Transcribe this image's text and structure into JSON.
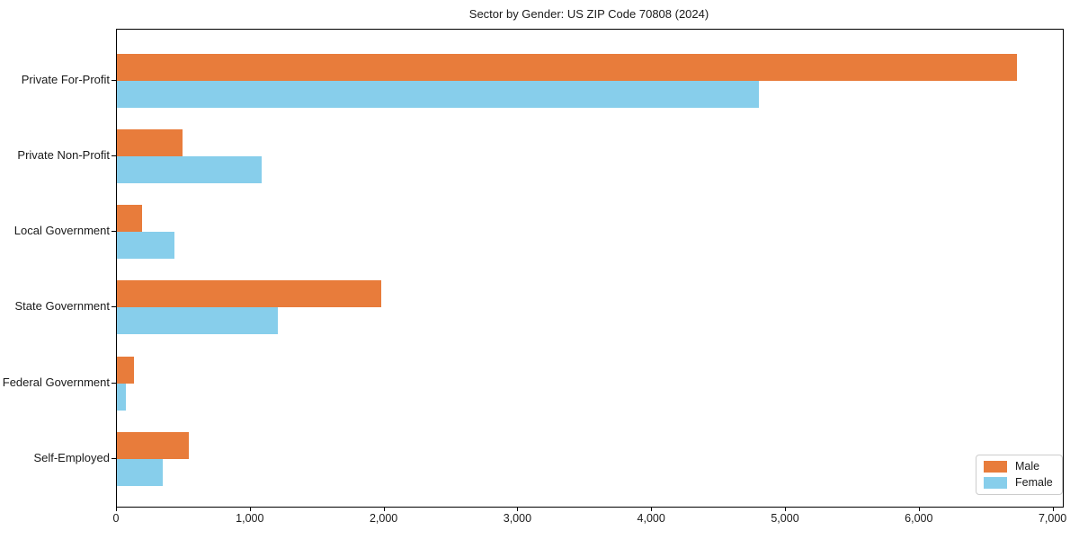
{
  "title": "Sector by Gender: US ZIP Code 70808 (2024)",
  "chart_data": {
    "type": "bar",
    "orientation": "horizontal",
    "title": "Sector by Gender: US ZIP Code 70808 (2024)",
    "categories": [
      "Private For-Profit",
      "Private Non-Profit",
      "Local Government",
      "State Government",
      "Federal Government",
      "Self-Employed"
    ],
    "series": [
      {
        "name": "Male",
        "color": "#E87C3B",
        "values": [
          6730,
          490,
          185,
          1975,
          130,
          535
        ]
      },
      {
        "name": "Female",
        "color": "#87CEEB",
        "values": [
          4800,
          1080,
          430,
          1200,
          66,
          345
        ]
      }
    ],
    "xlim": [
      0,
      7070
    ],
    "x_ticks": [
      0,
      1000,
      2000,
      3000,
      4000,
      5000,
      6000,
      7000
    ],
    "x_tick_labels": [
      "0",
      "1,000",
      "2,000",
      "3,000",
      "4,000",
      "5,000",
      "6,000",
      "7,000"
    ],
    "xlabel": "",
    "ylabel": "",
    "grid": false,
    "legend": {
      "position": "lower-right",
      "entries": [
        "Male",
        "Female"
      ]
    }
  },
  "colors": {
    "male": "#E87C3B",
    "female": "#87CEEB",
    "axis": "#000000",
    "legend_border": "#CCCCCC",
    "background": "#FFFFFF"
  }
}
